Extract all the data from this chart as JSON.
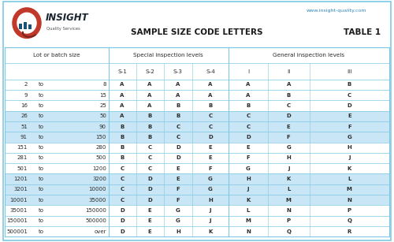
{
  "title": "SAMPLE SIZE CODE LETTERS",
  "table_num": "TABLE 1",
  "website": "www.insight-quality.com",
  "company": "INSIGHT",
  "company_sub": "Quality Services",
  "rows": [
    [
      "2",
      "to",
      "8",
      "A",
      "A",
      "A",
      "A",
      "A",
      "A",
      "B"
    ],
    [
      "9",
      "to",
      "15",
      "A",
      "A",
      "A",
      "A",
      "A",
      "B",
      "C"
    ],
    [
      "16",
      "to",
      "25",
      "A",
      "A",
      "B",
      "B",
      "B",
      "C",
      "D"
    ],
    [
      "26",
      "to",
      "50",
      "A",
      "B",
      "B",
      "C",
      "C",
      "D",
      "E"
    ],
    [
      "51",
      "to",
      "90",
      "B",
      "B",
      "C",
      "C",
      "C",
      "E",
      "F"
    ],
    [
      "91",
      "to",
      "150",
      "B",
      "B",
      "C",
      "D",
      "D",
      "F",
      "G"
    ],
    [
      "151",
      "to",
      "280",
      "B",
      "C",
      "D",
      "E",
      "E",
      "G",
      "H"
    ],
    [
      "281",
      "to",
      "500",
      "B",
      "C",
      "D",
      "E",
      "F",
      "H",
      "J"
    ],
    [
      "501",
      "to",
      "1200",
      "C",
      "C",
      "E",
      "F",
      "G",
      "J",
      "K"
    ],
    [
      "1201",
      "to",
      "3200",
      "C",
      "D",
      "E",
      "G",
      "H",
      "K",
      "L"
    ],
    [
      "3201",
      "to",
      "10000",
      "C",
      "D",
      "F",
      "G",
      "J",
      "L",
      "M"
    ],
    [
      "10001",
      "to",
      "35000",
      "C",
      "D",
      "F",
      "H",
      "K",
      "M",
      "N"
    ],
    [
      "35001",
      "to",
      "150000",
      "D",
      "E",
      "G",
      "J",
      "L",
      "N",
      "P"
    ],
    [
      "150001",
      "to",
      "500000",
      "D",
      "E",
      "G",
      "J",
      "M",
      "P",
      "Q"
    ],
    [
      "500001",
      "to",
      "over",
      "D",
      "E",
      "H",
      "K",
      "N",
      "Q",
      "R"
    ]
  ],
  "row_group_shading": [
    0,
    0,
    0,
    1,
    1,
    1,
    0,
    0,
    0,
    1,
    1,
    1,
    0,
    0,
    0
  ],
  "bg_color": "#FFFFFF",
  "shade_color": "#C8E6F5",
  "border_color": "#7EC8E3",
  "text_color": "#2c2c2c",
  "title_color": "#1a1a1a",
  "website_color": "#2E86C1",
  "outer_border_color": "#7EC8E3"
}
